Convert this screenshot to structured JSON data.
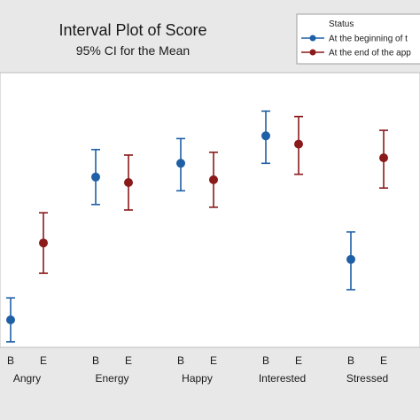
{
  "chart_data": {
    "type": "interval",
    "title": "Interval Plot of Score",
    "subtitle": "95% CI for the Mean",
    "legend": {
      "title": "Status",
      "placement": "top-right",
      "entries": [
        {
          "name": "At the beginning of t",
          "color": "#1f5fa6"
        },
        {
          "name": "At the end of the app",
          "color": "#8b1a1a"
        }
      ]
    },
    "ylim": [
      0,
      100
    ],
    "groups": [
      "Angry",
      "Energy",
      "Happy",
      "Interested",
      "Stressed"
    ],
    "subcategories": [
      "B",
      "E"
    ],
    "series": [
      {
        "key": "B",
        "color": "#1f5fa6",
        "mean": [
          10,
          62,
          67,
          77,
          32
        ],
        "lower": [
          2,
          52,
          57,
          67,
          21
        ],
        "upper": [
          18,
          72,
          76,
          86,
          42
        ]
      },
      {
        "key": "E",
        "color": "#8b1a1a",
        "mean": [
          38,
          60,
          61,
          74,
          69
        ],
        "lower": [
          27,
          50,
          51,
          63,
          58
        ],
        "upper": [
          49,
          70,
          71,
          84,
          79
        ]
      }
    ]
  }
}
